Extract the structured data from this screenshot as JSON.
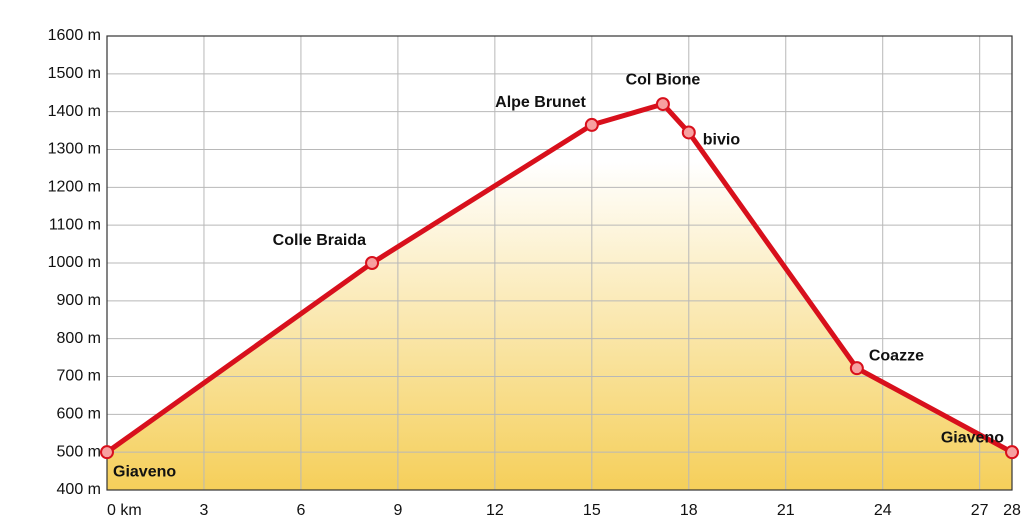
{
  "chart_data": {
    "type": "line",
    "x": [
      0,
      8.2,
      15.0,
      17.2,
      18.0,
      23.2,
      28
    ],
    "series": [
      {
        "color": "#d8101c",
        "values": [
          500,
          1000,
          1365,
          1420,
          1345,
          722,
          500
        ]
      }
    ],
    "point_labels": [
      "Giaveno",
      "Colle Braida",
      "Alpe Brunet",
      "Col Bione",
      "bivio",
      "Coazze",
      "Giaveno"
    ],
    "xlim": [
      0,
      28
    ],
    "ylim": [
      400,
      1600
    ],
    "xticks": [
      {
        "value": 0,
        "label": "0 km"
      },
      3,
      6,
      9,
      12,
      15,
      18,
      21,
      24,
      27,
      28
    ],
    "yticks": [
      {
        "value": 400,
        "label": "400 m"
      },
      {
        "value": 500,
        "label": "500 m"
      },
      {
        "value": 600,
        "label": "600 m"
      },
      {
        "value": 700,
        "label": "700 m"
      },
      {
        "value": 800,
        "label": "800 m"
      },
      {
        "value": 900,
        "label": "900 m"
      },
      {
        "value": 1000,
        "label": "1000 m"
      },
      {
        "value": 1100,
        "label": "1100 m"
      },
      {
        "value": 1200,
        "label": "1200 m"
      },
      {
        "value": 1300,
        "label": "1300 m"
      },
      {
        "value": 1400,
        "label": "1400 m"
      },
      {
        "value": 1500,
        "label": "1500 m"
      },
      {
        "value": 1600,
        "label": "1600 m"
      }
    ],
    "grid": true,
    "fill_color": "#f5cf5a"
  }
}
